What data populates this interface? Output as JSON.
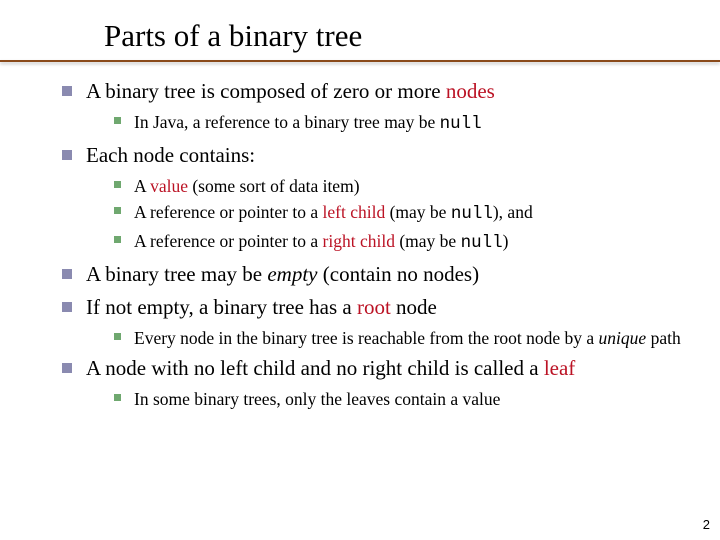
{
  "title": "Parts of a binary tree",
  "colors": {
    "underline": "#8a4a1a",
    "bullet_lvl1": "#8a8ab0",
    "bullet_lvl2": "#6fa86f",
    "red_text": "#bb1224",
    "background": "#ffffff"
  },
  "b1": {
    "pre": "A binary tree is composed of zero or more ",
    "red": "nodes",
    "sub1_pre": "In Java, a reference to a binary tree may be ",
    "sub1_mono": "null"
  },
  "b2": {
    "text": "Each node contains:",
    "sub1_pre": "A ",
    "sub1_red": "value",
    "sub1_post": " (some sort of data item)",
    "sub2_pre": "A reference or pointer to a ",
    "sub2_red": "left child",
    "sub2_mid": " (may be ",
    "sub2_mono": "null",
    "sub2_post": "), and",
    "sub3_pre": "A reference or pointer to a ",
    "sub3_red": "right child",
    "sub3_mid": " (may be ",
    "sub3_mono": "null",
    "sub3_post": ")"
  },
  "b3": {
    "pre": "A binary tree may be ",
    "ital": "empty",
    "post": " (contain no nodes)"
  },
  "b4": {
    "pre": "If not empty, a binary tree has a ",
    "red": "root",
    "post": " node",
    "sub1_pre": "Every node in the binary tree is reachable from the root node by a ",
    "sub1_ital": "unique",
    "sub1_post": " path"
  },
  "b5": {
    "pre": "A node with no left child and no right child is called a ",
    "red": "leaf",
    "sub1": "In some binary trees, only the leaves contain a value"
  },
  "page_number": "2"
}
